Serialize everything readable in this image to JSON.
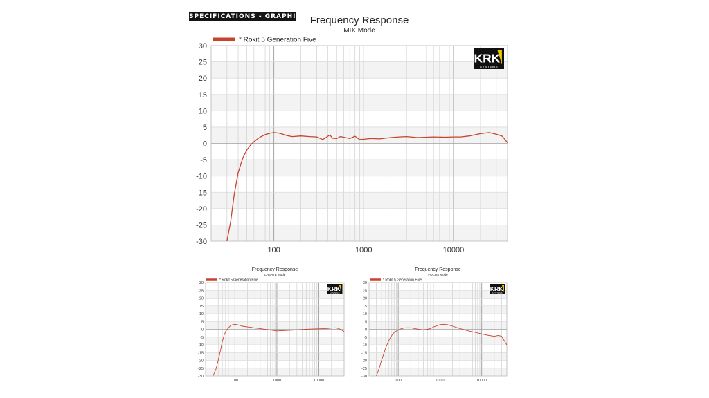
{
  "banner": "SPECIFICATIONS - GRAPHICAL",
  "brand": {
    "logo_top": "KRK",
    "logo_sub": "SYSTEMS",
    "accent": "#f2c500"
  },
  "curve_color": "#c8422f",
  "chart_data": [
    {
      "type": "line",
      "title": "Frequency Response",
      "subtitle": "MIX Mode",
      "legend_label": "* Rokit 5 Generation Five",
      "legend_position": "top-left",
      "x_scale": "log",
      "xlim": [
        20,
        40000
      ],
      "ylim": [
        -30,
        30
      ],
      "x_ticks": [
        100,
        1000,
        10000
      ],
      "x_tick_labels": [
        "100",
        "1000",
        "10000"
      ],
      "y_ticks": [
        30,
        25,
        20,
        15,
        10,
        5,
        0,
        -5,
        -10,
        -15,
        -20,
        -25,
        -30
      ],
      "y_tick_labels": [
        "30",
        "25",
        "20",
        "15",
        "10",
        "5",
        "0",
        "-5",
        "-10",
        "-15",
        "-20",
        "-25",
        "-30"
      ],
      "grid": true,
      "series": [
        {
          "name": "* Rokit 5 Generation Five",
          "x": [
            30,
            33,
            36,
            40,
            45,
            50,
            55,
            60,
            65,
            70,
            80,
            90,
            100,
            110,
            120,
            140,
            160,
            200,
            250,
            300,
            350,
            380,
            420,
            450,
            500,
            550,
            600,
            700,
            800,
            900,
            1000,
            1200,
            1500,
            2000,
            2500,
            3000,
            4000,
            5000,
            6000,
            8000,
            10000,
            12000,
            15000,
            20000,
            25000,
            30000,
            35000,
            40000
          ],
          "y": [
            -30,
            -24,
            -16,
            -9,
            -4.5,
            -2,
            -0.5,
            0.5,
            1.3,
            1.9,
            2.7,
            3.1,
            3.3,
            3.2,
            3.0,
            2.4,
            2.1,
            2.3,
            2.1,
            2.0,
            1.2,
            1.8,
            2.6,
            1.6,
            1.5,
            2.1,
            1.9,
            1.5,
            2.2,
            1.2,
            1.3,
            1.5,
            1.4,
            1.8,
            2.0,
            2.1,
            1.8,
            1.9,
            2.0,
            1.9,
            2.0,
            2.0,
            2.3,
            3.0,
            3.3,
            2.8,
            2.2,
            0.2
          ]
        }
      ]
    },
    {
      "type": "line",
      "title": "Frequency Response",
      "subtitle": "CREATE Mode",
      "legend_label": "* Rokit 5 Generation Five",
      "legend_position": "top-left",
      "x_scale": "log",
      "xlim": [
        20,
        40000
      ],
      "ylim": [
        -30,
        30
      ],
      "x_ticks": [
        100,
        1000,
        10000
      ],
      "x_tick_labels": [
        "100",
        "1000",
        "10000"
      ],
      "y_ticks": [
        30,
        25,
        20,
        15,
        10,
        5,
        0,
        -5,
        -10,
        -15,
        -20,
        -25,
        -30
      ],
      "y_tick_labels": [
        "30",
        "25",
        "20",
        "15",
        "10",
        "5",
        "0",
        "-5",
        "-10",
        "-15",
        "-20",
        "-25",
        "-30"
      ],
      "grid": true,
      "series": [
        {
          "name": "* Rokit 5 Generation Five",
          "x": [
            30,
            35,
            40,
            45,
            50,
            55,
            60,
            70,
            80,
            90,
            100,
            120,
            150,
            200,
            250,
            300,
            400,
            500,
            700,
            1000,
            1500,
            2000,
            3000,
            5000,
            7000,
            10000,
            15000,
            20000,
            25000,
            30000,
            40000
          ],
          "y": [
            -30,
            -26,
            -20,
            -14,
            -8,
            -4,
            -1.5,
            1.0,
            2.5,
            3.0,
            3.2,
            2.8,
            2.0,
            1.5,
            1.2,
            0.8,
            0.5,
            0.0,
            -0.5,
            -1.0,
            -0.8,
            -0.6,
            -0.4,
            0.0,
            0.2,
            0.3,
            0.5,
            0.8,
            1.0,
            0.5,
            -1.5
          ]
        }
      ]
    },
    {
      "type": "line",
      "title": "Frequency Response",
      "subtitle": "FOCUS Mode",
      "legend_label": "* Rokit 5 Generation Five",
      "legend_position": "top-left",
      "x_scale": "log",
      "xlim": [
        20,
        40000
      ],
      "ylim": [
        -30,
        30
      ],
      "x_ticks": [
        100,
        1000,
        10000
      ],
      "x_tick_labels": [
        "100",
        "1000",
        "10000"
      ],
      "y_ticks": [
        30,
        25,
        20,
        15,
        10,
        5,
        0,
        -5,
        -10,
        -15,
        -20,
        -25,
        -30
      ],
      "y_tick_labels": [
        "30",
        "25",
        "20",
        "15",
        "10",
        "5",
        "0",
        "-5",
        "-10",
        "-15",
        "-20",
        "-25",
        "-30"
      ],
      "grid": true,
      "series": [
        {
          "name": "* Rokit 5 Generation Five",
          "x": [
            30,
            35,
            40,
            50,
            60,
            70,
            80,
            100,
            120,
            150,
            200,
            250,
            300,
            400,
            500,
            600,
            700,
            800,
            1000,
            1200,
            1500,
            2000,
            3000,
            4000,
            5000,
            7000,
            10000,
            15000,
            20000,
            25000,
            30000,
            35000,
            40000
          ],
          "y": [
            -30,
            -25,
            -20,
            -12,
            -7,
            -4,
            -2,
            -0.5,
            0.5,
            1.0,
            1.0,
            0.5,
            0.0,
            -0.5,
            0.0,
            0.5,
            1.5,
            2.0,
            3.0,
            3.2,
            3.0,
            2.0,
            0.5,
            -0.5,
            -1.2,
            -2.0,
            -3.0,
            -4.0,
            -4.5,
            -4.0,
            -4.5,
            -7.5,
            -10
          ]
        }
      ]
    }
  ]
}
